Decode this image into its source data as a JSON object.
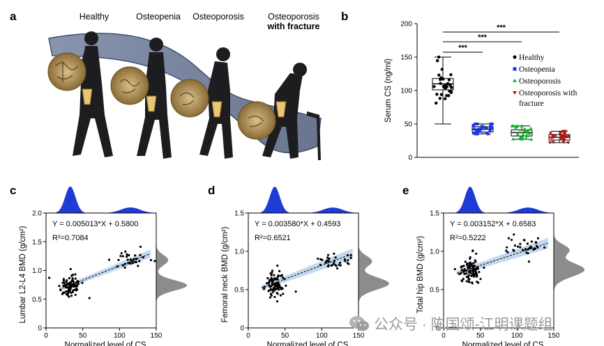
{
  "panels": {
    "a": {
      "letter": "a",
      "stages": [
        "Healthy",
        "Osteopenia",
        "Osteoporosis",
        "Osteoporosis"
      ],
      "stage4_bold": "with fracture"
    },
    "b": {
      "letter": "b"
    },
    "c": {
      "letter": "c"
    },
    "d": {
      "letter": "d"
    },
    "e": {
      "letter": "e"
    }
  },
  "watermark": {
    "text": "公众号 · 陈国颂-江明课题组",
    "icon": "wechat-icon"
  },
  "chart_data": [
    {
      "id": "b",
      "type": "box-scatter",
      "ylabel": "Serum CS (ng/ml)",
      "ylim": [
        0,
        200
      ],
      "yticks": [
        0,
        50,
        100,
        150,
        200
      ],
      "groups": [
        {
          "name": "Healthy",
          "color": "#000000",
          "marker": "circle",
          "min": 50,
          "q1": 101,
          "median": 110,
          "q3": 118,
          "max": 150
        },
        {
          "name": "Osteopenia",
          "color": "#1a37e6",
          "marker": "square",
          "min": 35,
          "q1": 38,
          "median": 42,
          "q3": 46,
          "max": 50
        },
        {
          "name": "Osteoporosis",
          "color": "#14b52e",
          "marker": "triangle-up",
          "min": 27,
          "q1": 32,
          "median": 37,
          "q3": 41,
          "max": 47
        },
        {
          "name": "Osteoporosis with fracture",
          "color": "#b01717",
          "marker": "triangle-down",
          "min": 22,
          "q1": 26,
          "median": 30,
          "q3": 34,
          "max": 39
        }
      ],
      "legend": [
        "Healthy",
        "Osteopenia",
        "Osteoporosis",
        "Osteoporosis with",
        "fracture"
      ],
      "significance": [
        "***",
        "***",
        "***"
      ],
      "legend_position": "right"
    },
    {
      "id": "c",
      "type": "scatter",
      "xlabel": "Normalized level of  CS",
      "ylabel": "Lumbar L2-L4 BMD (g/cm²)",
      "xlim": [
        0,
        150
      ],
      "ylim": [
        0,
        2.0
      ],
      "xticks": [
        0,
        50,
        100,
        150
      ],
      "yticks": [
        "0",
        "0.5",
        "1.0",
        "1.5",
        "2.0"
      ],
      "slope": 0.005013,
      "intercept": 0.58,
      "equation": "Y = 0.005013*X + 0.5800",
      "r2": "R²=0.7084",
      "clusters": [
        {
          "cx": 33,
          "cy": 0.74,
          "sx": 7,
          "sy": 0.09,
          "n": 90
        },
        {
          "cx": 115,
          "cy": 1.18,
          "sx": 13,
          "sy": 0.09,
          "n": 35
        }
      ]
    },
    {
      "id": "d",
      "type": "scatter",
      "xlabel": "Normalized level of  CS",
      "ylabel": "Femoral neck BMD (g/cm²)",
      "xlim": [
        0,
        150
      ],
      "ylim": [
        0,
        1.5
      ],
      "xticks": [
        0,
        50,
        100,
        150
      ],
      "yticks": [
        "0",
        "0.5",
        "1.0",
        "1.5"
      ],
      "slope": 0.00358,
      "intercept": 0.4593,
      "equation": "Y = 0.003580*X + 0.4593",
      "r2": "R²=0.6521",
      "clusters": [
        {
          "cx": 36,
          "cy": 0.58,
          "sx": 7,
          "sy": 0.08,
          "n": 90
        },
        {
          "cx": 115,
          "cy": 0.87,
          "sx": 13,
          "sy": 0.07,
          "n": 35
        }
      ]
    },
    {
      "id": "e",
      "type": "scatter",
      "xlabel": "Normalized level of  CS",
      "ylabel": "Total hip BMD (g/cm²)",
      "xlim": [
        0,
        150
      ],
      "ylim": [
        0,
        1.5
      ],
      "xticks": [
        0,
        50,
        100,
        150
      ],
      "yticks": [
        "0",
        "0.5",
        "1.0",
        "1.5"
      ],
      "slope": 0.003152,
      "intercept": 0.6583,
      "equation": "Y = 0.003152*X + 0.6583",
      "r2": "R²=0.5222",
      "clusters": [
        {
          "cx": 36,
          "cy": 0.76,
          "sx": 7,
          "sy": 0.09,
          "n": 90
        },
        {
          "cx": 115,
          "cy": 1.02,
          "sx": 13,
          "sy": 0.07,
          "n": 35
        }
      ]
    }
  ]
}
